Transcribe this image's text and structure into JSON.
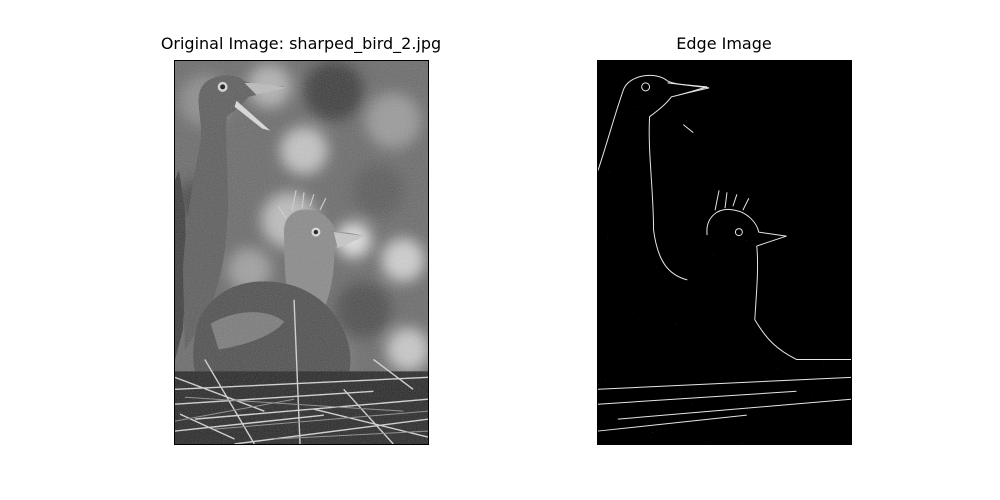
{
  "figure": {
    "background": "#ffffff",
    "panels": [
      {
        "title": "Original Image: sharped_bird_2.jpg",
        "content": "grayscale photograph"
      },
      {
        "title": "Edge Image",
        "content": "edge-detected photograph"
      }
    ]
  },
  "colors": {
    "edge_background": "#000000",
    "edge_lines": "#e6e6e6",
    "axis_border": "#000000"
  }
}
